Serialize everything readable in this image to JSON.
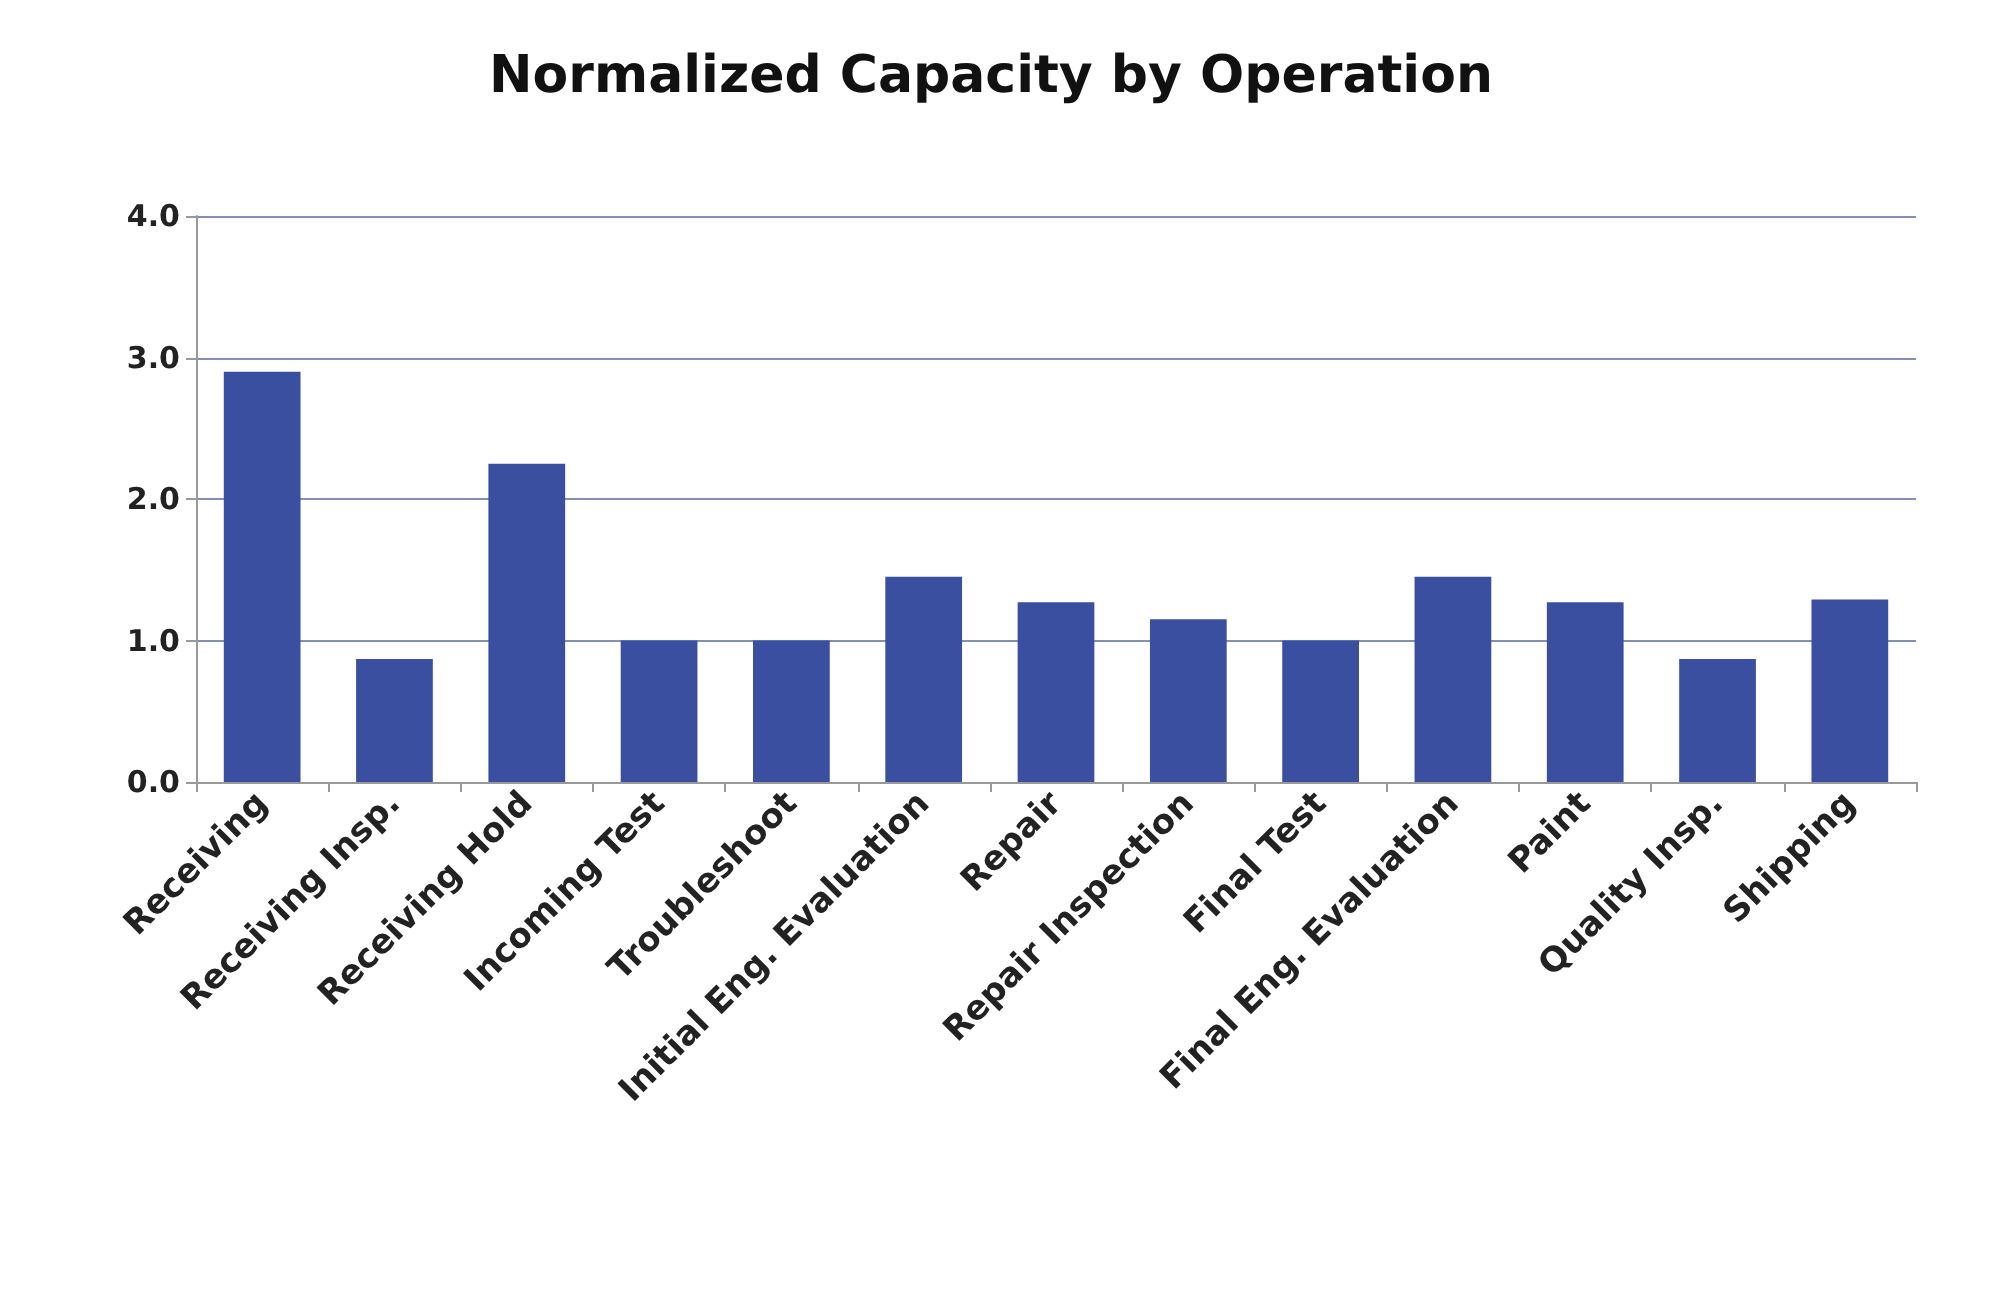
{
  "chart_data": {
    "type": "bar",
    "title": "Normalized Capacity by Operation",
    "categories": [
      "Receiving",
      "Receiving Insp.",
      "Receiving Hold",
      "Incoming Test",
      "Troubleshoot",
      "Initial Eng. Evaluation",
      "Repair",
      "Repair Inspection",
      "Final Test",
      "Final Eng. Evaluation",
      "Paint",
      "Quality Insp.",
      "Shipping"
    ],
    "values": [
      2.9,
      0.87,
      2.25,
      1.0,
      1.0,
      1.45,
      1.27,
      1.15,
      1.0,
      1.45,
      1.27,
      0.87,
      1.29
    ],
    "color": "#3a4f9f",
    "ylim": [
      0,
      4
    ],
    "yticks": [
      {
        "value": 0,
        "label": "0.0"
      },
      {
        "value": 1,
        "label": "1.0"
      },
      {
        "value": 2,
        "label": "2.0"
      },
      {
        "value": 3,
        "label": "3.0"
      },
      {
        "value": 4,
        "label": "4.0"
      }
    ],
    "grid": "y"
  }
}
